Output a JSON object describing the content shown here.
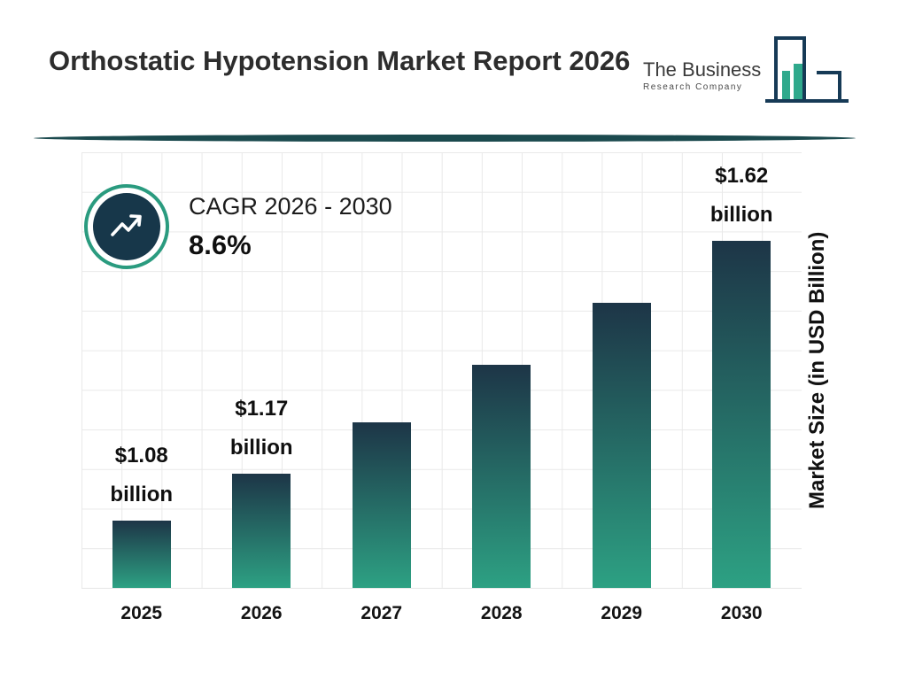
{
  "header": {
    "title": "Orthostatic Hypotension Market Report 2026",
    "logo": {
      "name": "The Business",
      "tagline": "Research Company"
    }
  },
  "cagr": {
    "label": "CAGR 2026 - 2030",
    "value": "8.6%"
  },
  "chart_data": {
    "type": "bar",
    "categories": [
      "2025",
      "2026",
      "2027",
      "2028",
      "2029",
      "2030"
    ],
    "values": [
      1.08,
      1.17,
      1.27,
      1.38,
      1.5,
      1.62
    ],
    "value_labels": [
      {
        "amount": "$1.08",
        "unit": "billion"
      },
      {
        "amount": "$1.17",
        "unit": "billion"
      },
      null,
      null,
      null,
      {
        "amount": "$1.62",
        "unit": "billion"
      }
    ],
    "ylabel": "Market Size (in USD Billion)",
    "ylim": [
      0.95,
      1.79
    ],
    "grid": true,
    "legend": false,
    "bar_color_top": "#1d3547",
    "bar_color_bottom": "#2da183",
    "grid_color": "#e9e9e9"
  },
  "colors": {
    "divider": "#1b4a4e",
    "cagr_ring": "#2a9b7f",
    "cagr_circle": "#17374a",
    "logo_outline": "#163a56",
    "logo_fill": "#2fa98c"
  }
}
